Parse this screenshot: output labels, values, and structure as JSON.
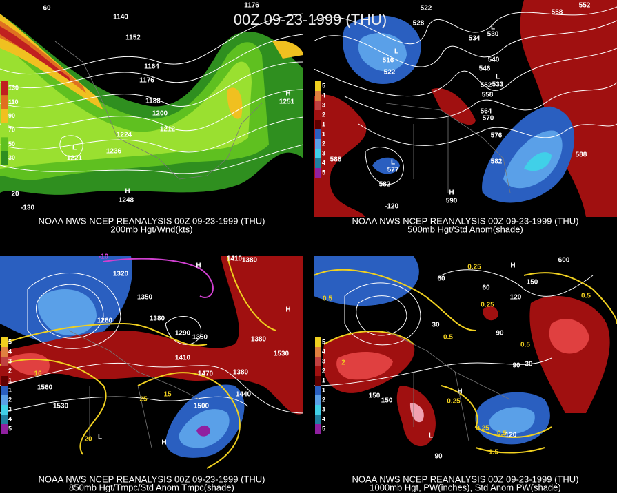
{
  "title": "00Z 09-23-1999 (THU)",
  "panels": [
    {
      "caption": "NOAA NWS NCEP REANALYSIS 00Z 09-23-1999 (THU)",
      "subtitle": "200mb Hgt/Wnd(kts)",
      "legend": [
        130,
        110,
        90,
        70,
        50,
        30
      ],
      "labels": [
        1176,
        1140,
        1152,
        1164,
        1176,
        1188,
        1200,
        1212,
        1224,
        1236,
        "L",
        1221,
        "H",
        1248,
        "H",
        1251,
        60,
        -130,
        20
      ]
    },
    {
      "caption": "NOAA NWS NCEP REANALYSIS 00Z 09-23-1999 (THU)",
      "subtitle": "500mb Hgt/Std Anom(shade)",
      "legend": [
        5,
        4,
        3,
        2,
        1,
        1,
        2,
        3,
        4,
        5
      ],
      "labels": [
        522,
        528,
        534,
        540,
        546,
        552,
        558,
        564,
        570,
        576,
        582,
        588,
        588,
        582,
        516,
        522,
        "L",
        "L",
        530,
        "L",
        533,
        "L",
        577,
        "H",
        590,
        552,
        558,
        -120
      ]
    },
    {
      "caption": "NOAA NWS NCEP REANALYSIS 00Z 09-23-1999 (THU)",
      "subtitle": "850mb Hgt/Tmpc/Std Anom Tmpc(shade)",
      "legend": [
        5,
        4,
        3,
        2,
        1,
        1,
        2,
        3,
        4,
        5
      ],
      "labels": [
        -10,
        1320,
        1410,
        1380,
        1350,
        1380,
        1260,
        1290,
        1350,
        1410,
        1470,
        1380,
        1530,
        1560,
        1530,
        1500,
        1440,
        1380,
        16,
        25,
        15,
        20,
        "H",
        "H",
        "L",
        "H"
      ]
    },
    {
      "caption": "NOAA NWS NCEP REANALYSIS 00Z 09-23-1999 (THU)",
      "subtitle": "1000mb Hgt, PW(inches), Std Anom PW(shade)",
      "legend": [
        5,
        4,
        3,
        2,
        1,
        1,
        2,
        3,
        4,
        5
      ],
      "labels": [
        0.5,
        0.25,
        0.5,
        0.25,
        60,
        60,
        30,
        90,
        120,
        150,
        600,
        0.5,
        0.5,
        30,
        90,
        150,
        150,
        0.25,
        0.25,
        0.5,
        120,
        1.5,
        90,
        2,
        "H",
        "L",
        "H"
      ]
    }
  ]
}
